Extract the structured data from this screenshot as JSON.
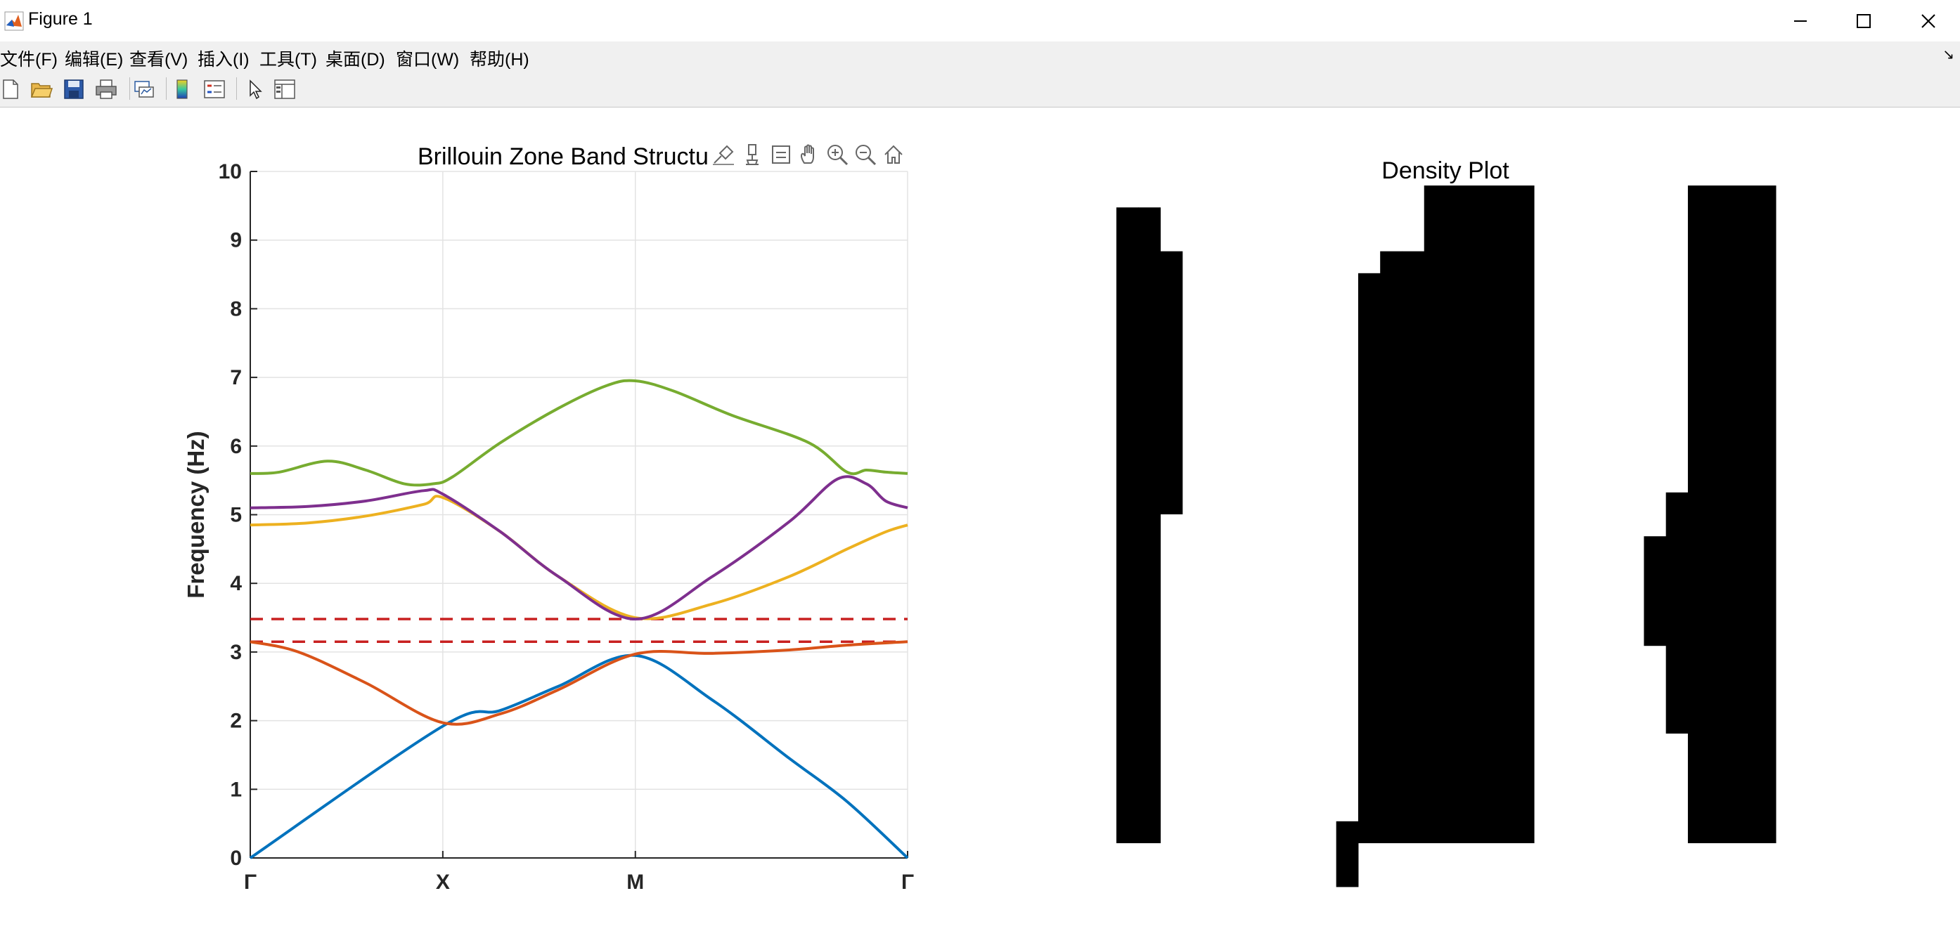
{
  "window": {
    "title": "Figure 1",
    "controls": [
      "minimize",
      "maximize",
      "close"
    ]
  },
  "menu": [
    "文件(F)",
    "编辑(E)",
    "查看(V)",
    "插入(I)",
    "工具(T)",
    "桌面(D)",
    "窗口(W)",
    "帮助(H)"
  ],
  "toolbar": {
    "icons": [
      "new-figure-icon",
      "open-file-icon",
      "save-icon",
      "print-icon",
      "link-plot-icon",
      "colorbar-icon",
      "legend-icon",
      "edit-plot-icon",
      "property-inspector-icon"
    ]
  },
  "axes_toolbar": {
    "icons": [
      "brush-data-icon",
      "data-tips-icon",
      "restore-view-icon",
      "pan-icon",
      "zoom-in-icon",
      "zoom-out-icon",
      "home-icon"
    ]
  },
  "colors": {
    "series": [
      "#0072BD",
      "#D95319",
      "#EDB120",
      "#7E2F8E",
      "#77AC30"
    ],
    "gap_lines": "#C82020",
    "density_fill": "#000000"
  },
  "chart_data": [
    {
      "type": "line",
      "title": "Brillouin Zone Band Structure",
      "xlabel": "",
      "ylabel": "Frequency (Hz)",
      "xlim": [
        0,
        3.414
      ],
      "ylim": [
        0,
        10
      ],
      "yticks": [
        0,
        1,
        2,
        3,
        4,
        5,
        6,
        7,
        8,
        9,
        10
      ],
      "xticks": [
        0,
        1,
        2,
        3.414
      ],
      "xticklabels": [
        "Γ",
        "X",
        "M",
        "Γ"
      ],
      "grid": true,
      "series": [
        {
          "color": "#0072BD",
          "x": [
            0,
            1,
            1.3,
            1.6,
            2,
            2.4,
            2.8,
            3.1,
            3.414
          ],
          "y": [
            0,
            1.92,
            2.15,
            2.5,
            2.95,
            2.3,
            1.45,
            0.82,
            0
          ]
        },
        {
          "color": "#D95319",
          "x": [
            0,
            0.25,
            0.6,
            1,
            1.3,
            1.6,
            2,
            2.4,
            2.8,
            3.1,
            3.414
          ],
          "y": [
            3.15,
            3.0,
            2.55,
            1.97,
            2.1,
            2.45,
            2.97,
            2.98,
            3.03,
            3.1,
            3.15
          ]
        },
        {
          "color": "#EDB120",
          "x": [
            0,
            0.3,
            0.6,
            0.9,
            1,
            1.3,
            1.6,
            2,
            2.4,
            2.8,
            3.1,
            3.3,
            3.414
          ],
          "y": [
            4.85,
            4.88,
            4.98,
            5.15,
            5.25,
            4.75,
            4.1,
            3.5,
            3.7,
            4.1,
            4.5,
            4.75,
            4.85
          ]
        },
        {
          "color": "#7E2F8E",
          "x": [
            0,
            0.3,
            0.6,
            0.9,
            1,
            1.3,
            1.6,
            2,
            2.4,
            2.8,
            3.05,
            3.2,
            3.3,
            3.414
          ],
          "y": [
            5.1,
            5.12,
            5.2,
            5.35,
            5.3,
            4.75,
            4.1,
            3.48,
            4.1,
            4.9,
            5.52,
            5.45,
            5.2,
            5.1
          ]
        },
        {
          "color": "#77AC30",
          "x": [
            0,
            0.15,
            0.4,
            0.6,
            0.8,
            0.95,
            1.05,
            1.3,
            1.6,
            1.85,
            2,
            2.2,
            2.5,
            2.9,
            3.1,
            3.2,
            3.3,
            3.414
          ],
          "y": [
            5.6,
            5.62,
            5.78,
            5.65,
            5.45,
            5.45,
            5.55,
            6.05,
            6.55,
            6.88,
            6.95,
            6.8,
            6.45,
            6.05,
            5.62,
            5.65,
            5.62,
            5.6
          ]
        }
      ],
      "gap_lines": [
        3.15,
        3.48
      ]
    },
    {
      "type": "heatmap",
      "title": "Density Plot",
      "colormap": [
        "#ffffff",
        "#000000"
      ],
      "grid_size": [
        30,
        30
      ],
      "filled_column_ranges": [
        [
          0,
          1,
          30
        ],
        [
          1,
          1,
          30
        ],
        [
          2,
          3,
          15
        ],
        [
          10,
          29,
          32
        ],
        [
          11,
          4,
          30
        ],
        [
          12,
          3,
          30
        ],
        [
          13,
          3,
          30
        ],
        [
          14,
          0,
          30
        ],
        [
          15,
          0,
          30
        ],
        [
          16,
          0,
          30
        ],
        [
          17,
          0,
          30
        ],
        [
          18,
          0,
          30
        ],
        [
          24,
          16,
          21
        ],
        [
          25,
          14,
          25
        ],
        [
          26,
          0,
          30
        ],
        [
          27,
          0,
          30
        ],
        [
          28,
          0,
          30
        ],
        [
          29,
          0,
          30
        ]
      ]
    }
  ]
}
